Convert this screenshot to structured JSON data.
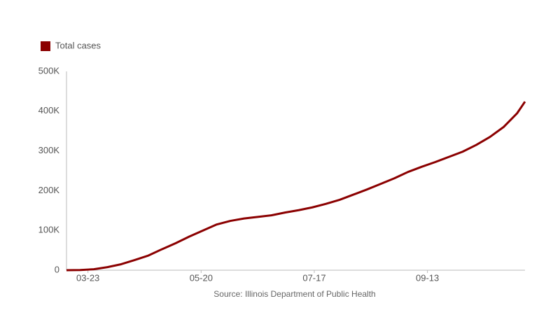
{
  "chart_data": {
    "type": "line",
    "source": "Source: Illinois Department of Public Health",
    "x": [
      "03-12",
      "03-19",
      "03-26",
      "04-02",
      "04-09",
      "04-16",
      "04-23",
      "04-30",
      "05-07",
      "05-14",
      "05-21",
      "05-28",
      "06-04",
      "06-11",
      "06-18",
      "06-25",
      "07-02",
      "07-09",
      "07-16",
      "07-23",
      "07-30",
      "08-06",
      "08-13",
      "08-20",
      "08-27",
      "09-03",
      "09-10",
      "09-17",
      "09-24",
      "10-01",
      "10-08",
      "10-15",
      "10-22",
      "10-29",
      "11-02"
    ],
    "series": [
      {
        "name": "Total cases",
        "color": "#8b0000",
        "values": [
          0,
          400,
          2500,
          7700,
          15000,
          25700,
          36900,
          52900,
          68000,
          84700,
          100000,
          115000,
          124000,
          130000,
          134000,
          138000,
          145000,
          151000,
          158000,
          167000,
          177000,
          190000,
          203000,
          217000,
          231000,
          247000,
          260000,
          272000,
          285000,
          298000,
          315000,
          335000,
          360000,
          395000,
          424000
        ]
      }
    ],
    "xlim": [
      "03-12",
      "11-02"
    ],
    "xticks": [
      "03-23",
      "05-20",
      "07-17",
      "09-13"
    ],
    "ylim": [
      0,
      500000
    ],
    "yticks": [
      0,
      {
        "value": 100000,
        "label": "100K"
      },
      {
        "value": 200000,
        "label": "200K"
      },
      {
        "value": 300000,
        "label": "300K"
      },
      {
        "value": 400000,
        "label": "400K"
      },
      {
        "value": 500000,
        "label": "500K"
      }
    ],
    "grid": false,
    "legend": "top-left"
  }
}
